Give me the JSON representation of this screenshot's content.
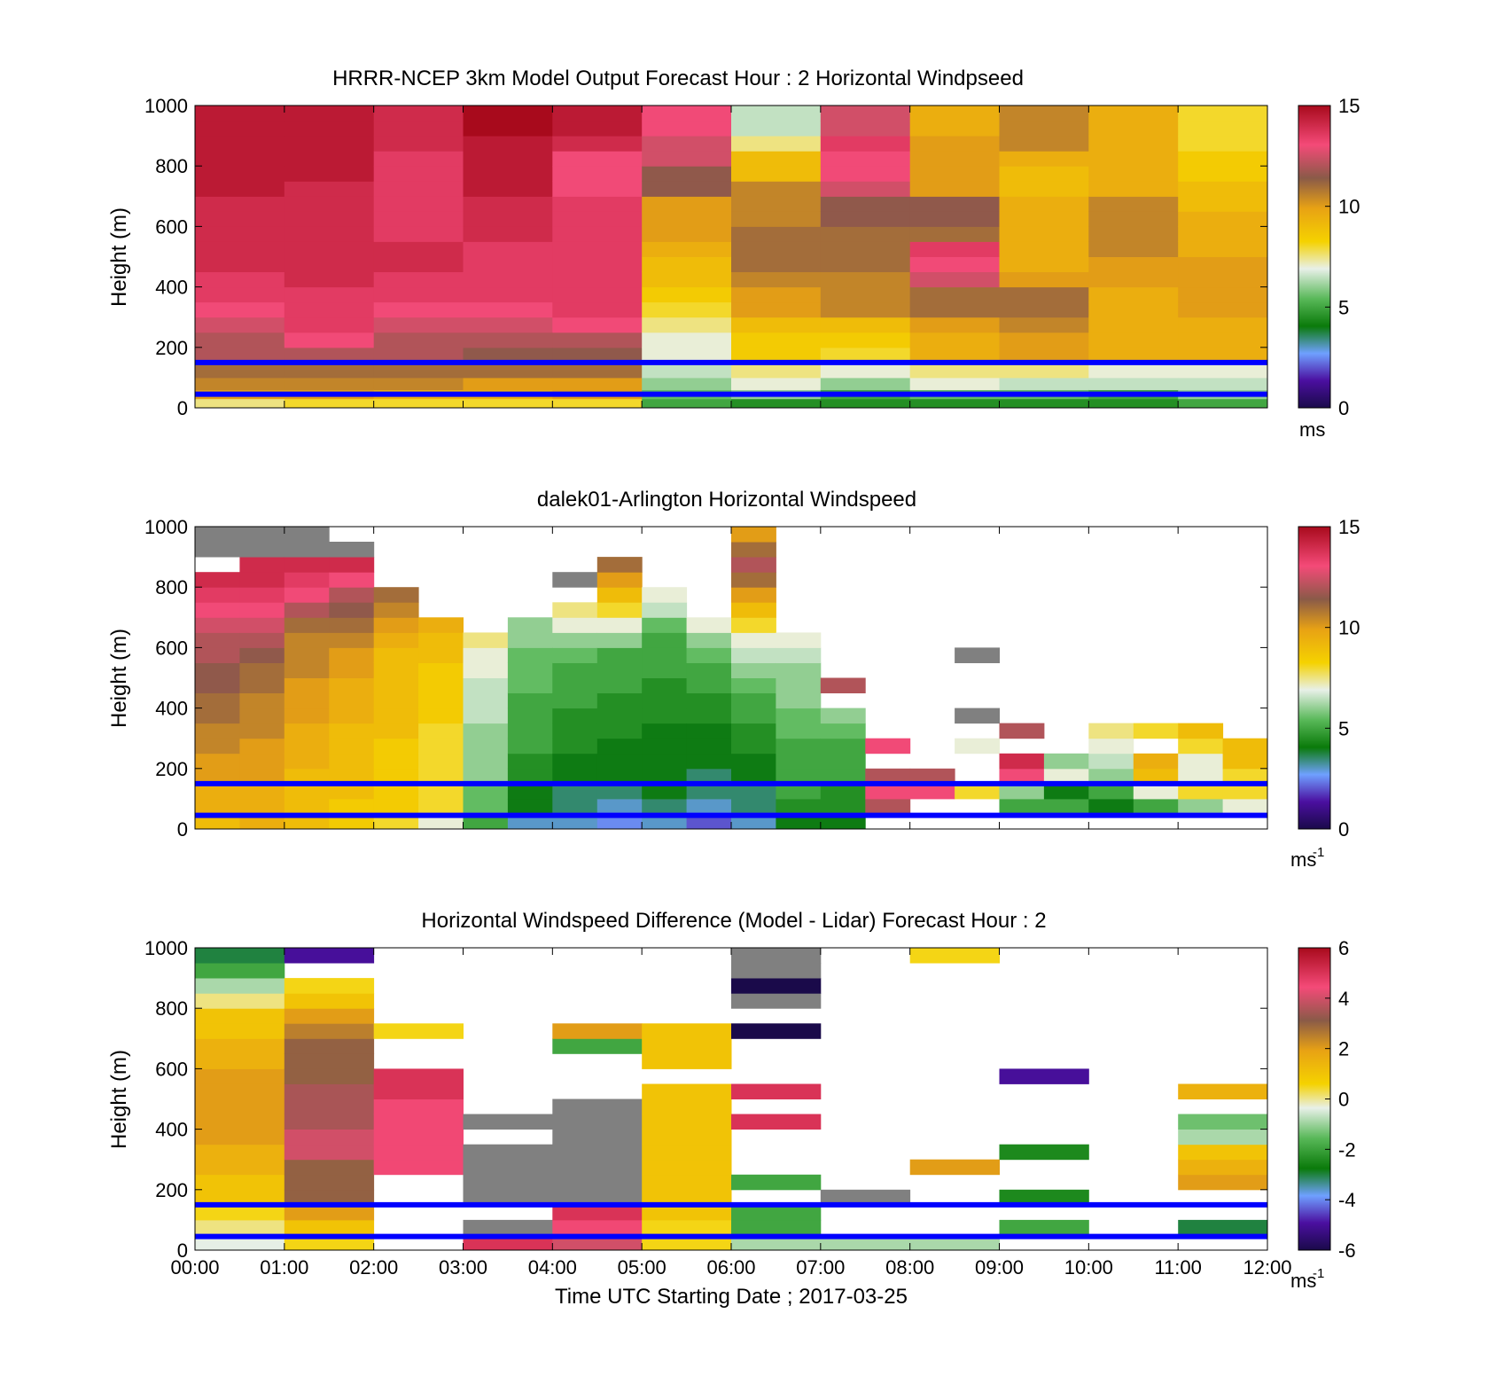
{
  "figure": {
    "xlabel": "Time UTC  Starting Date ; 2017-03-25",
    "x_tick_labels": [
      "00:00",
      "01:00",
      "02:00",
      "03:00",
      "04:00",
      "05:00",
      "06:00",
      "07:00",
      "08:00",
      "09:00",
      "10:00",
      "11:00",
      "12:00"
    ],
    "reference_line_color": "#0000ff",
    "nodata_color": "#808080"
  },
  "chart_data": [
    {
      "type": "heatmap",
      "title": "HRRR-NCEP 3km Model Output   Forecast Hour : 2 Horizontal Windpseed",
      "ylabel": "Height (m)",
      "xlim": [
        "00:00",
        "12:00"
      ],
      "ylim": [
        0,
        1000
      ],
      "y_ticks": [
        0,
        200,
        400,
        600,
        800,
        1000
      ],
      "colorbar": {
        "min": 0,
        "max": 15,
        "ticks": [
          0,
          5,
          10,
          15
        ],
        "unit": "ms"
      },
      "reference_lines_height_m": [
        150,
        45
      ],
      "x_hours_start": [
        0,
        1,
        2,
        3,
        4,
        5,
        6,
        7,
        8,
        9,
        10,
        11
      ],
      "y_levels_m": [
        0,
        30,
        60,
        100,
        150,
        200,
        250,
        300,
        350,
        400,
        450,
        500,
        550,
        600,
        650,
        700,
        750,
        800,
        850,
        900,
        950
      ],
      "values": [
        [
          7.5,
          10,
          10.5,
          11,
          12,
          12,
          12.5,
          13,
          13.5,
          13.5,
          14,
          14,
          14,
          14,
          14,
          14.5,
          14.5,
          14.5,
          14.5,
          14.5,
          14.5
        ],
        [
          8,
          10,
          10.5,
          11,
          12,
          13,
          13.5,
          13.5,
          13.5,
          14,
          14,
          14,
          14,
          14,
          14,
          14,
          14.5,
          14.5,
          14.5,
          14.5,
          14.5
        ],
        [
          8,
          9.5,
          10.5,
          11,
          12,
          12,
          12.5,
          13,
          13.5,
          13.5,
          14,
          14,
          13.5,
          13.5,
          13.5,
          13.5,
          13.5,
          13.5,
          14,
          14,
          14
        ],
        [
          8,
          9.5,
          10,
          11,
          11.5,
          12,
          12.5,
          13,
          13.5,
          13.5,
          13.5,
          13.5,
          14,
          14,
          14,
          14.5,
          14.5,
          14.5,
          14.5,
          15,
          15
        ],
        [
          8,
          10,
          10,
          11,
          11.5,
          12,
          13,
          13.5,
          13.5,
          13.5,
          13.5,
          13.5,
          13.5,
          13.5,
          13.5,
          13,
          13,
          13,
          14,
          14.5,
          14.5
        ],
        [
          5,
          5.5,
          6,
          6.5,
          7,
          7,
          7.5,
          8,
          8.5,
          9,
          9,
          9.5,
          10,
          10,
          10,
          11.5,
          11.5,
          12.5,
          12.5,
          13,
          13
        ],
        [
          4.5,
          6,
          7,
          7.5,
          8.5,
          8.5,
          9,
          10,
          10,
          10.5,
          11,
          11,
          11,
          10.5,
          10.5,
          10.5,
          9,
          9,
          7.5,
          6.5,
          6.5
        ],
        [
          4.5,
          5,
          6,
          7,
          8,
          8.5,
          9,
          10.5,
          10.5,
          10.5,
          11,
          11,
          11,
          11.5,
          11.5,
          12.5,
          13,
          13,
          13.5,
          12.5,
          12.5
        ],
        [
          4.5,
          5.5,
          7,
          7.5,
          9.5,
          9.5,
          10,
          11,
          11,
          12.5,
          13,
          13.5,
          11,
          11.5,
          11.5,
          10,
          10,
          10,
          10,
          9.5,
          9.5
        ],
        [
          4.5,
          5.5,
          6.5,
          7.5,
          10,
          10,
          10.5,
          11,
          11,
          10,
          9.5,
          9.5,
          9.5,
          9.5,
          9.5,
          9,
          9,
          9.5,
          10.5,
          10.5,
          10.5
        ],
        [
          4.5,
          5,
          6.5,
          7,
          9.5,
          9.5,
          9.5,
          9.5,
          9.5,
          10,
          10,
          10.5,
          10.5,
          10.5,
          10.5,
          9.5,
          9.5,
          9.5,
          9.5,
          9.5,
          9.5
        ],
        [
          5,
          6,
          6.5,
          7,
          9.5,
          9.5,
          9.5,
          10,
          10,
          10,
          10,
          9.5,
          9.5,
          9.5,
          9,
          9,
          8.5,
          8.5,
          8,
          8,
          8
        ]
      ]
    },
    {
      "type": "heatmap",
      "title": "dalek01-Arlington  Horizontal Windspeed",
      "ylabel": "Height (m)",
      "xlim": [
        "00:00",
        "12:00"
      ],
      "ylim": [
        0,
        1000
      ],
      "y_ticks": [
        0,
        200,
        400,
        600,
        800,
        1000
      ],
      "colorbar": {
        "min": 0,
        "max": 15,
        "ticks": [
          0,
          5,
          10,
          15
        ],
        "unit": "ms",
        "unit_exponent": "-1"
      },
      "reference_lines_height_m": [
        150,
        45
      ],
      "x_hours_start": [
        0,
        0.5,
        1,
        1.5,
        2,
        2.5,
        3,
        3.5,
        4,
        4.5,
        5,
        5.5,
        6,
        6.5,
        7,
        7.5,
        8,
        8.5,
        9,
        9.5,
        10,
        10.5,
        11,
        11.5
      ],
      "y_levels_m": [
        0,
        50,
        100,
        150,
        200,
        250,
        300,
        350,
        400,
        450,
        500,
        550,
        600,
        650,
        700,
        750,
        800,
        850,
        900,
        950
      ],
      "values": [
        [
          9,
          9.5,
          9.5,
          10,
          10,
          10.5,
          10.5,
          11,
          11,
          11.5,
          11.5,
          12,
          12,
          12.5,
          13,
          13.5,
          14,
          null,
          16,
          16
        ],
        [
          9.5,
          9.5,
          9.5,
          10,
          10,
          10,
          10.5,
          10.5,
          10.5,
          11,
          11,
          11.5,
          12,
          12.5,
          13,
          13.5,
          14,
          14,
          16,
          16
        ],
        [
          9,
          9,
          9,
          9,
          9.5,
          9.5,
          9.5,
          10,
          10,
          10,
          10.5,
          10.5,
          10.5,
          11,
          12,
          13,
          13.5,
          14,
          16,
          16
        ],
        [
          8.5,
          8.5,
          9,
          9,
          9,
          9,
          9,
          9.5,
          9.5,
          9.5,
          10,
          10,
          10.5,
          11,
          11.5,
          12,
          13,
          14,
          16,
          null
        ],
        [
          8,
          8.5,
          8.5,
          8.5,
          8.5,
          8.5,
          9,
          9,
          9,
          9,
          9,
          9,
          9.5,
          10,
          10.5,
          11,
          null,
          null,
          null,
          null
        ],
        [
          7,
          8,
          8,
          8,
          8,
          8,
          8,
          8.5,
          8.5,
          8.5,
          8.5,
          9,
          9,
          9.5,
          null,
          null,
          null,
          null,
          null,
          null
        ],
        [
          5,
          5.5,
          5.5,
          6,
          6,
          6,
          6,
          6.5,
          6.5,
          6.5,
          7,
          7,
          7.5,
          null,
          null,
          null,
          null,
          null,
          null,
          null
        ],
        [
          3,
          4,
          4,
          4.5,
          4.5,
          5,
          5,
          5,
          5,
          5.5,
          5.5,
          5.5,
          6,
          6,
          null,
          null,
          null,
          null,
          null,
          null
        ],
        [
          3,
          3.5,
          3.5,
          4,
          4,
          4.5,
          4.5,
          4.5,
          5,
          5,
          5,
          5.5,
          6,
          7,
          7.5,
          null,
          16,
          null,
          null,
          null
        ],
        [
          2.5,
          3,
          3.5,
          4,
          4,
          4,
          4.5,
          4.5,
          4.5,
          5,
          5,
          5,
          6,
          7,
          8,
          9,
          10,
          11,
          null,
          null
        ],
        [
          3,
          3.5,
          4,
          4,
          4,
          4,
          4,
          4.5,
          4.5,
          4.5,
          5,
          5,
          5,
          5.5,
          6.5,
          7,
          null,
          null,
          null,
          null
        ],
        [
          2,
          3,
          3.5,
          3.5,
          4,
          4,
          4,
          4.5,
          4.5,
          5,
          5,
          5.5,
          6,
          7,
          null,
          null,
          null,
          null,
          null,
          null
        ],
        [
          3,
          3.5,
          3.5,
          4,
          4,
          4.5,
          4.5,
          5,
          5,
          5.5,
          6,
          6.5,
          7,
          8,
          9,
          10,
          11,
          12,
          11,
          10
        ],
        [
          4,
          4.5,
          5,
          5,
          5,
          5,
          5.5,
          5.5,
          6,
          6,
          6,
          6.5,
          7,
          null,
          null,
          null,
          null,
          null,
          null,
          null
        ],
        [
          4,
          4.5,
          4.5,
          5,
          5,
          5,
          5.5,
          6,
          null,
          12,
          null,
          null,
          null,
          null,
          null,
          null,
          null,
          null,
          null,
          null
        ],
        [
          null,
          12,
          13,
          12,
          null,
          13,
          null,
          null,
          null,
          null,
          null,
          null,
          null,
          null,
          null,
          null,
          null,
          null,
          null,
          null
        ],
        [
          null,
          null,
          13,
          12,
          null,
          null,
          null,
          null,
          null,
          null,
          null,
          null,
          null,
          null,
          null,
          null,
          null,
          null,
          null,
          null
        ],
        [
          null,
          null,
          8,
          null,
          null,
          7,
          null,
          16,
          null,
          null,
          null,
          16,
          null,
          null,
          null,
          null,
          null,
          null,
          null,
          null
        ],
        [
          null,
          5,
          6,
          13,
          14,
          null,
          12,
          null,
          null,
          null,
          null,
          null,
          null,
          null,
          null,
          null,
          null,
          null,
          null,
          null
        ],
        [
          null,
          5,
          4,
          7,
          6,
          null,
          null,
          null,
          null,
          null,
          null,
          null,
          null,
          null,
          null,
          null,
          null,
          null,
          null,
          null
        ],
        [
          null,
          4,
          5,
          6,
          6.5,
          7,
          7.5,
          null,
          null,
          null,
          null,
          null,
          null,
          null,
          null,
          null,
          null,
          null,
          null,
          null
        ],
        [
          null,
          5,
          7,
          9,
          9.5,
          null,
          8,
          null,
          null,
          null,
          null,
          null,
          null,
          null,
          null,
          null,
          null,
          null,
          null,
          null
        ],
        [
          null,
          6,
          8,
          7,
          7,
          8,
          9,
          null,
          null,
          null,
          null,
          null,
          null,
          null,
          null,
          null,
          null,
          null,
          null,
          null
        ],
        [
          null,
          7,
          8,
          8,
          9,
          9,
          null,
          null,
          null,
          null,
          null,
          null,
          null,
          null,
          null,
          null,
          null,
          null,
          null,
          null
        ]
      ]
    },
    {
      "type": "heatmap",
      "title": "Horizontal Windspeed Difference (Model - Lidar) Forecast Hour : 2",
      "ylabel": "Height (m)",
      "xlim": [
        "00:00",
        "12:00"
      ],
      "ylim": [
        0,
        1000
      ],
      "y_ticks": [
        0,
        200,
        400,
        600,
        800,
        1000
      ],
      "colorbar": {
        "min": -6,
        "max": 6,
        "ticks": [
          -6,
          -4,
          -2,
          0,
          2,
          4,
          6
        ],
        "unit": "ms",
        "unit_exponent": "-1"
      },
      "reference_lines_height_m": [
        150,
        45
      ],
      "x_hours_start": [
        0,
        1,
        2,
        3,
        4,
        5,
        6,
        7,
        8,
        9,
        10,
        11
      ],
      "y_levels_m": [
        0,
        50,
        100,
        150,
        200,
        250,
        300,
        350,
        400,
        450,
        500,
        550,
        600,
        650,
        700,
        750,
        800,
        850,
        900,
        950
      ],
      "values": [
        [
          -0.5,
          0,
          0.5,
          1,
          1,
          1.5,
          1.5,
          2,
          2,
          2,
          2,
          2,
          1.5,
          1.5,
          1,
          1,
          0,
          -1,
          -2,
          -3
        ],
        [
          0.5,
          1,
          2,
          3,
          3,
          3,
          4,
          4,
          3.5,
          3.5,
          3.5,
          3,
          3,
          3,
          2.5,
          2,
          1,
          0.5,
          null,
          -5
        ],
        [
          null,
          null,
          null,
          null,
          null,
          4.5,
          4.5,
          4.5,
          4.5,
          4.5,
          5,
          5,
          null,
          null,
          0.5,
          null,
          null,
          null,
          null,
          null
        ],
        [
          5,
          7,
          null,
          7,
          7,
          7,
          7,
          null,
          7,
          null,
          null,
          null,
          null,
          null,
          null,
          null,
          null,
          null,
          null,
          null
        ],
        [
          4,
          4.5,
          5,
          7,
          7,
          7,
          7,
          7,
          7,
          7,
          null,
          null,
          null,
          -2,
          2,
          null,
          null,
          null,
          null,
          null
        ],
        [
          0.5,
          0.5,
          1,
          1,
          1,
          1,
          1,
          1,
          1,
          1,
          1,
          null,
          1,
          1,
          1,
          null,
          null,
          null,
          null,
          null
        ],
        [
          -1,
          -2,
          -2,
          null,
          -2,
          null,
          null,
          null,
          5,
          null,
          5,
          null,
          null,
          null,
          -6,
          null,
          7,
          -6,
          7,
          7
        ],
        [
          -1,
          null,
          null,
          7,
          null,
          null,
          null,
          null,
          null,
          null,
          null,
          null,
          null,
          null,
          null,
          null,
          null,
          null,
          null,
          null
        ],
        [
          -1,
          null,
          null,
          null,
          null,
          2,
          null,
          null,
          null,
          null,
          null,
          null,
          null,
          null,
          null,
          null,
          null,
          null,
          null,
          0.5
        ],
        [
          null,
          -2,
          null,
          -2.5,
          null,
          null,
          -2.5,
          null,
          null,
          null,
          null,
          -5,
          null,
          null,
          null,
          null,
          null,
          null,
          null,
          null
        ],
        [
          null,
          null,
          null,
          null,
          null,
          null,
          null,
          null,
          null,
          null,
          null,
          null,
          null,
          null,
          null,
          null,
          null,
          null,
          null,
          null
        ],
        [
          null,
          -3,
          null,
          null,
          2,
          1.5,
          1,
          -1,
          -1.5,
          null,
          1.5,
          null,
          null,
          null,
          null,
          null,
          null,
          null,
          null,
          null
        ]
      ]
    }
  ]
}
